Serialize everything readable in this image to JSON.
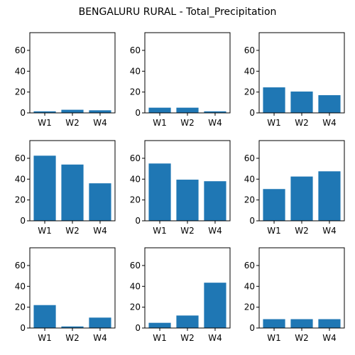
{
  "chart_data": {
    "title": "BENGALURU RURAL - Total_Precipitation",
    "type": "bar",
    "color": "#1f77b4",
    "layout": "3x3 grid",
    "ylim": [
      0,
      77
    ],
    "yticks": [
      0,
      20,
      40,
      60
    ],
    "subplots": [
      {
        "categories": [
          "W1",
          "W2",
          "W4"
        ],
        "values": [
          1.5,
          3.0,
          2.5
        ]
      },
      {
        "categories": [
          "W1",
          "W2",
          "W4"
        ],
        "values": [
          5.0,
          5.0,
          1.5
        ]
      },
      {
        "categories": [
          "W1",
          "W2",
          "W4"
        ],
        "values": [
          24.5,
          20.5,
          17.0
        ]
      },
      {
        "categories": [
          "W1",
          "W2",
          "W4"
        ],
        "values": [
          62.5,
          54.0,
          36.0
        ]
      },
      {
        "categories": [
          "W1",
          "W2",
          "W4"
        ],
        "values": [
          55.0,
          39.5,
          38.0
        ]
      },
      {
        "categories": [
          "W1",
          "W2",
          "W4"
        ],
        "values": [
          30.5,
          42.5,
          47.5
        ]
      },
      {
        "categories": [
          "W1",
          "W2",
          "W4"
        ],
        "values": [
          22.0,
          1.5,
          10.0
        ]
      },
      {
        "categories": [
          "W1",
          "W2",
          "W4"
        ],
        "values": [
          5.0,
          12.0,
          43.5
        ]
      },
      {
        "categories": [
          "W1",
          "W2",
          "W4"
        ],
        "values": [
          8.5,
          8.5,
          8.5
        ]
      }
    ]
  }
}
